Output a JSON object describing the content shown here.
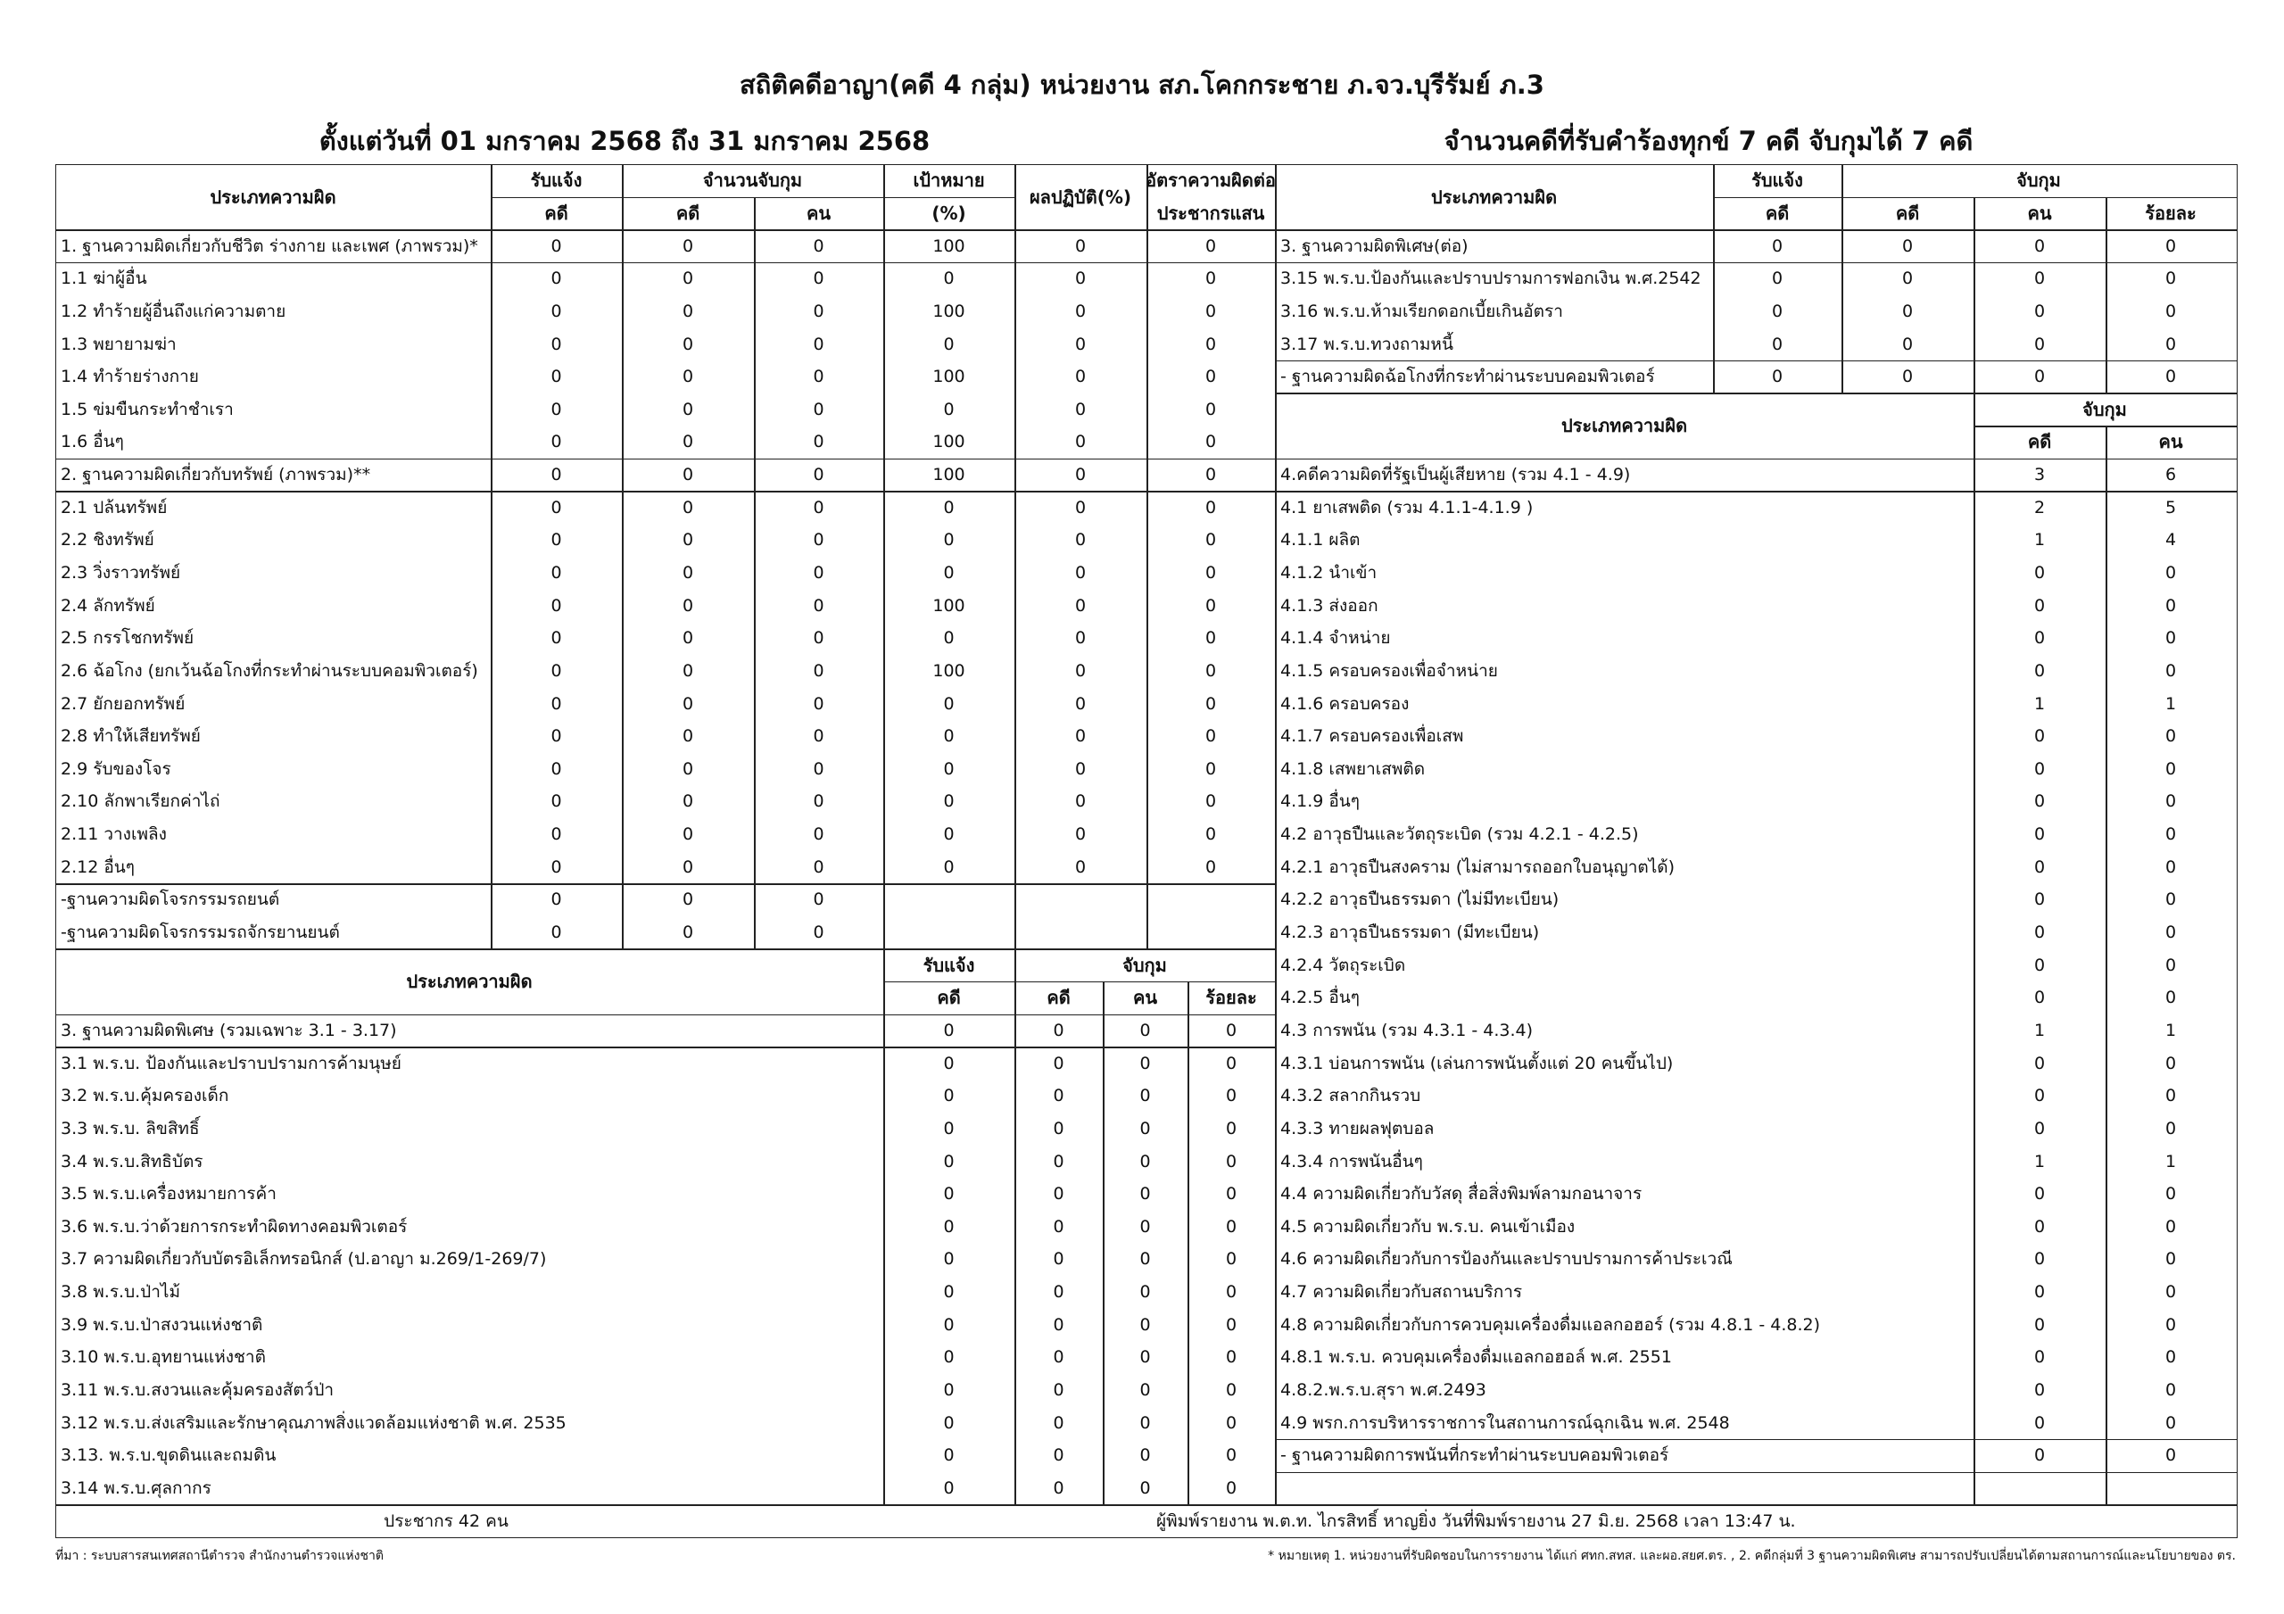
{
  "header": {
    "title": "สถิติคดีอาญา(คดี 4 กลุ่ม) หน่วยงาน สภ.โคกกระชาย ภ.จว.บุรีรัมย์ ภ.3",
    "period": "ตั้งแต่วันที่ 01 มกราคม 2568 ถึง 31 มกราคม 2568",
    "summary": "จำนวนคดีที่รับคำร้องทุกข์  7 คดี  จับกุมได้  7 คดี"
  },
  "labels": {
    "offense_type": "ประเภทความผิด",
    "reported": "รับแจ้ง",
    "cases": "คดี",
    "persons": "คน",
    "arrest_count": "จำนวนจับกุม",
    "arrest": "จับกุม",
    "target": "เป้าหมาย",
    "target_pct": "(%)",
    "performance": "ผลปฏิบัติ(%)",
    "rate_line1": "อัตราความผิดต่อ",
    "rate_line2": "ประชากรแสน",
    "percent": "ร้อยละ"
  },
  "left_upper": [
    {
      "label": "1. ฐานความผิดเกี่ยวกับชีวิต ร่างกาย และเพศ (ภาพรวม)*",
      "values": [
        "0",
        "0",
        "0",
        "100",
        "0",
        "0"
      ]
    },
    {
      "label": "1.1 ฆ่าผู้อื่น",
      "values": [
        "0",
        "0",
        "0",
        "0",
        "0",
        "0"
      ]
    },
    {
      "label": "1.2 ทำร้ายผู้อื่นถึงแก่ความตาย",
      "values": [
        "0",
        "0",
        "0",
        "100",
        "0",
        "0"
      ]
    },
    {
      "label": "1.3 พยายามฆ่า",
      "values": [
        "0",
        "0",
        "0",
        "0",
        "0",
        "0"
      ]
    },
    {
      "label": "1.4 ทำร้ายร่างกาย",
      "values": [
        "0",
        "0",
        "0",
        "100",
        "0",
        "0"
      ]
    },
    {
      "label": "1.5 ข่มขืนกระทำชำเรา",
      "values": [
        "0",
        "0",
        "0",
        "0",
        "0",
        "0"
      ]
    },
    {
      "label": "1.6 อื่นๆ",
      "values": [
        "0",
        "0",
        "0",
        "100",
        "0",
        "0"
      ]
    },
    {
      "label": "2. ฐานความผิดเกี่ยวกับทรัพย์ (ภาพรวม)**",
      "values": [
        "0",
        "0",
        "0",
        "100",
        "0",
        "0"
      ]
    },
    {
      "label": "2.1 ปล้นทรัพย์",
      "values": [
        "0",
        "0",
        "0",
        "0",
        "0",
        "0"
      ]
    },
    {
      "label": "2.2 ชิงทรัพย์",
      "values": [
        "0",
        "0",
        "0",
        "0",
        "0",
        "0"
      ]
    },
    {
      "label": "2.3 วิ่งราวทรัพย์",
      "values": [
        "0",
        "0",
        "0",
        "0",
        "0",
        "0"
      ]
    },
    {
      "label": "2.4 ลักทรัพย์",
      "values": [
        "0",
        "0",
        "0",
        "100",
        "0",
        "0"
      ]
    },
    {
      "label": "2.5 กรรโชกทรัพย์",
      "values": [
        "0",
        "0",
        "0",
        "0",
        "0",
        "0"
      ]
    },
    {
      "label": "2.6 ฉ้อโกง (ยกเว้นฉ้อโกงที่กระทำผ่านระบบคอมพิวเตอร์)",
      "values": [
        "0",
        "0",
        "0",
        "100",
        "0",
        "0"
      ]
    },
    {
      "label": "2.7 ยักยอกทรัพย์",
      "values": [
        "0",
        "0",
        "0",
        "0",
        "0",
        "0"
      ]
    },
    {
      "label": "2.8 ทำให้เสียทรัพย์",
      "values": [
        "0",
        "0",
        "0",
        "0",
        "0",
        "0"
      ]
    },
    {
      "label": "2.9 รับของโจร",
      "values": [
        "0",
        "0",
        "0",
        "0",
        "0",
        "0"
      ]
    },
    {
      "label": "2.10 ลักพาเรียกค่าไถ่",
      "values": [
        "0",
        "0",
        "0",
        "0",
        "0",
        "0"
      ]
    },
    {
      "label": "2.11 วางเพลิง",
      "values": [
        "0",
        "0",
        "0",
        "0",
        "0",
        "0"
      ]
    },
    {
      "label": "2.12 อื่นๆ",
      "values": [
        "0",
        "0",
        "0",
        "0",
        "0",
        "0"
      ]
    },
    {
      "label": "-ฐานความผิดโจรกรรมรถยนต์",
      "values": [
        "0",
        "0",
        "0",
        "",
        "",
        ""
      ]
    },
    {
      "label": "-ฐานความผิดโจรกรรมรถจักรยานยนต์",
      "values": [
        "0",
        "0",
        "0",
        "",
        "",
        ""
      ]
    }
  ],
  "left_lower": [
    {
      "label": "3. ฐานความผิดพิเศษ (รวมเฉพาะ 3.1 - 3.17)",
      "values": [
        "0",
        "0",
        "0",
        "0"
      ]
    },
    {
      "label": "3.1 พ.ร.บ. ป้องกันและปราบปรามการค้ามนุษย์",
      "values": [
        "0",
        "0",
        "0",
        "0"
      ]
    },
    {
      "label": "3.2 พ.ร.บ.คุ้มครองเด็ก",
      "values": [
        "0",
        "0",
        "0",
        "0"
      ]
    },
    {
      "label": "3.3 พ.ร.บ. ลิขสิทธิ์",
      "values": [
        "0",
        "0",
        "0",
        "0"
      ]
    },
    {
      "label": "3.4 พ.ร.บ.สิทธิบัตร",
      "values": [
        "0",
        "0",
        "0",
        "0"
      ]
    },
    {
      "label": "3.5 พ.ร.บ.เครื่องหมายการค้า",
      "values": [
        "0",
        "0",
        "0",
        "0"
      ]
    },
    {
      "label": "3.6 พ.ร.บ.ว่าด้วยการกระทำผิดทางคอมพิวเตอร์",
      "values": [
        "0",
        "0",
        "0",
        "0"
      ]
    },
    {
      "label": "3.7 ความผิดเกี่ยวกับบัตรอิเล็กทรอนิกส์ (ป.อาญา ม.269/1-269/7)",
      "values": [
        "0",
        "0",
        "0",
        "0"
      ]
    },
    {
      "label": "3.8 พ.ร.บ.ป่าไม้",
      "values": [
        "0",
        "0",
        "0",
        "0"
      ]
    },
    {
      "label": "3.9 พ.ร.บ.ป่าสงวนแห่งชาติ",
      "values": [
        "0",
        "0",
        "0",
        "0"
      ]
    },
    {
      "label": "3.10 พ.ร.บ.อุทยานแห่งชาติ",
      "values": [
        "0",
        "0",
        "0",
        "0"
      ]
    },
    {
      "label": "3.11 พ.ร.บ.สงวนและคุ้มครองสัตว์ป่า",
      "values": [
        "0",
        "0",
        "0",
        "0"
      ]
    },
    {
      "label": "3.12 พ.ร.บ.ส่งเสริมและรักษาคุณภาพสิ่งแวดล้อมแห่งชาติ พ.ศ. 2535",
      "values": [
        "0",
        "0",
        "0",
        "0"
      ]
    },
    {
      "label": "3.13. พ.ร.บ.ขุดดินและถมดิน",
      "values": [
        "0",
        "0",
        "0",
        "0"
      ]
    },
    {
      "label": "3.14 พ.ร.บ.ศุลกากร",
      "values": [
        "0",
        "0",
        "0",
        "0"
      ]
    }
  ],
  "right_upper": [
    {
      "label": "3. ฐานความผิดพิเศษ(ต่อ)",
      "values": [
        "0",
        "0",
        "0",
        "0"
      ]
    },
    {
      "label": "3.15 พ.ร.บ.ป้องกันและปราบปรามการฟอกเงิน พ.ศ.2542",
      "values": [
        "0",
        "0",
        "0",
        "0"
      ]
    },
    {
      "label": "3.16 พ.ร.บ.ห้ามเรียกดอกเบี้ยเกินอัตรา",
      "values": [
        "0",
        "0",
        "0",
        "0"
      ]
    },
    {
      "label": "3.17 พ.ร.บ.ทวงถามหนี้",
      "values": [
        "0",
        "0",
        "0",
        "0"
      ]
    },
    {
      "label": "- ฐานความผิดฉ้อโกงที่กระทำผ่านระบบคอมพิวเตอร์",
      "values": [
        "0",
        "0",
        "0",
        "0"
      ]
    }
  ],
  "right_lower": [
    {
      "label": "4.คดีความผิดที่รัฐเป็นผู้เสียหาย (รวม 4.1 - 4.9)",
      "values": [
        "3",
        "6"
      ]
    },
    {
      "label": "4.1 ยาเสพติด (รวม 4.1.1-4.1.9 )",
      "values": [
        "2",
        "5"
      ]
    },
    {
      "label": "4.1.1 ผลิต",
      "values": [
        "1",
        "4"
      ]
    },
    {
      "label": "4.1.2 นำเข้า",
      "values": [
        "0",
        "0"
      ]
    },
    {
      "label": "4.1.3 ส่งออก",
      "values": [
        "0",
        "0"
      ]
    },
    {
      "label": "4.1.4 จำหน่าย",
      "values": [
        "0",
        "0"
      ]
    },
    {
      "label": "4.1.5 ครอบครองเพื่อจำหน่าย",
      "values": [
        "0",
        "0"
      ]
    },
    {
      "label": "4.1.6 ครอบครอง",
      "values": [
        "1",
        "1"
      ]
    },
    {
      "label": "4.1.7 ครอบครองเพื่อเสพ",
      "values": [
        "0",
        "0"
      ]
    },
    {
      "label": "4.1.8 เสพยาเสพติด",
      "values": [
        "0",
        "0"
      ]
    },
    {
      "label": "4.1.9 อื่นๆ",
      "values": [
        "0",
        "0"
      ]
    },
    {
      "label": "4.2 อาวุธปืนและวัตถุระเบิด (รวม 4.2.1 - 4.2.5)",
      "values": [
        "0",
        "0"
      ]
    },
    {
      "label": "4.2.1 อาวุธปืนสงคราม (ไม่สามารถออกใบอนุญาตได้)",
      "values": [
        "0",
        "0"
      ]
    },
    {
      "label": "4.2.2 อาวุธปืนธรรมดา (ไม่มีทะเบียน)",
      "values": [
        "0",
        "0"
      ]
    },
    {
      "label": "4.2.3 อาวุธปืนธรรมดา (มีทะเบียน)",
      "values": [
        "0",
        "0"
      ]
    },
    {
      "label": "4.2.4 วัตถุระเบิด",
      "values": [
        "0",
        "0"
      ]
    },
    {
      "label": "4.2.5 อื่นๆ",
      "values": [
        "0",
        "0"
      ]
    },
    {
      "label": "4.3 การพนัน (รวม 4.3.1 - 4.3.4)",
      "values": [
        "1",
        "1"
      ]
    },
    {
      "label": "4.3.1 บ่อนการพนัน (เล่นการพนันตั้งแต่ 20 คนขึ้นไป)",
      "values": [
        "0",
        "0"
      ]
    },
    {
      "label": "4.3.2 สลากกินรวบ",
      "values": [
        "0",
        "0"
      ]
    },
    {
      "label": "4.3.3 ทายผลฟุตบอล",
      "values": [
        "0",
        "0"
      ]
    },
    {
      "label": "4.3.4 การพนันอื่นๆ",
      "values": [
        "1",
        "1"
      ]
    },
    {
      "label": "4.4 ความผิดเกี่ยวกับวัสดุ สื่อสิ่งพิมพ์ลามกอนาจาร",
      "values": [
        "0",
        "0"
      ]
    },
    {
      "label": "4.5 ความผิดเกี่ยวกับ พ.ร.บ. คนเข้าเมือง",
      "values": [
        "0",
        "0"
      ]
    },
    {
      "label": "4.6 ความผิดเกี่ยวกับการป้องกันและปราบปรามการค้าประเวณี",
      "values": [
        "0",
        "0"
      ]
    },
    {
      "label": "4.7 ความผิดเกี่ยวกับสถานบริการ",
      "values": [
        "0",
        "0"
      ]
    },
    {
      "label": "4.8 ความผิดเกี่ยวกับการควบคุมเครื่องดื่มแอลกอฮอร์ (รวม 4.8.1 - 4.8.2)",
      "values": [
        "0",
        "0"
      ]
    },
    {
      "label": "4.8.1 พ.ร.บ. ควบคุมเครื่องดื่มแอลกอฮอล์ พ.ศ. 2551",
      "values": [
        "0",
        "0"
      ]
    },
    {
      "label": "4.8.2.พ.ร.บ.สุรา พ.ศ.2493",
      "values": [
        "0",
        "0"
      ]
    },
    {
      "label": "4.9 พรก.การบริหารราชการในสถานการณ์ฉุกเฉิน พ.ศ. 2548",
      "values": [
        "0",
        "0"
      ]
    },
    {
      "label": "- ฐานความผิดการพนันที่กระทำผ่านระบบคอมพิวเตอร์",
      "values": [
        "0",
        "0"
      ]
    }
  ],
  "footer": {
    "population": "ประชากร     42   คน",
    "printed_by": "ผู้พิมพ์รายงาน พ.ต.ท. ไกรสิทธิ์ หาญยิ่ง วันที่พิมพ์รายงาน 27 มิ.ย. 2568 เวลา 13:47 น.",
    "source": "ที่มา : ระบบสารสนเทศสถานีตำรวจ สำนักงานตำรวจแห่งชาติ",
    "remark": "* หมายเหตุ 1. หน่วยงานที่รับผิดชอบในการรายงาน ได้แก่ ศทก.สทส. และผอ.สยศ.ตร. , 2. คดีกลุ่มที่ 3 ฐานความผิดพิเศษ สามารถปรับเปลี่ยนได้ตามสถานการณ์และนโยบายของ ตร."
  }
}
